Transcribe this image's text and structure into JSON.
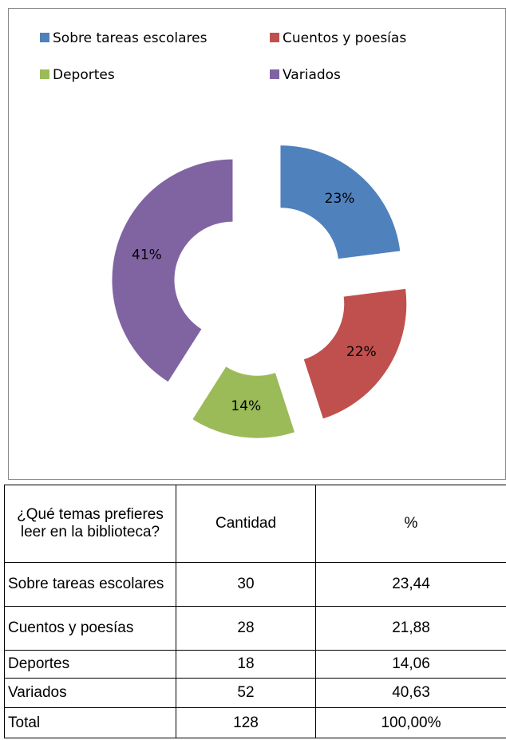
{
  "chart_data": {
    "type": "doughnut",
    "categories": [
      "Sobre tareas escolares",
      "Cuentos y poesías",
      "Deportes",
      "Variados"
    ],
    "values": [
      23,
      22,
      14,
      41
    ],
    "value_labels": [
      "23%",
      "22%",
      "14%",
      "41%"
    ],
    "colors": [
      "#4f81bd",
      "#c0504d",
      "#9bbb59",
      "#8064a2"
    ]
  },
  "table": {
    "header": [
      "¿Qué temas prefieres leer en la biblioteca?",
      "Cantidad",
      "%"
    ],
    "rows": [
      [
        "Sobre tareas escolares",
        "30",
        "23,44"
      ],
      [
        "Cuentos y poesías",
        "28",
        "21,88"
      ],
      [
        "Deportes",
        "18",
        "14,06"
      ],
      [
        "Variados",
        "52",
        "40,63"
      ],
      [
        "Total",
        "128",
        "100,00%"
      ]
    ]
  }
}
